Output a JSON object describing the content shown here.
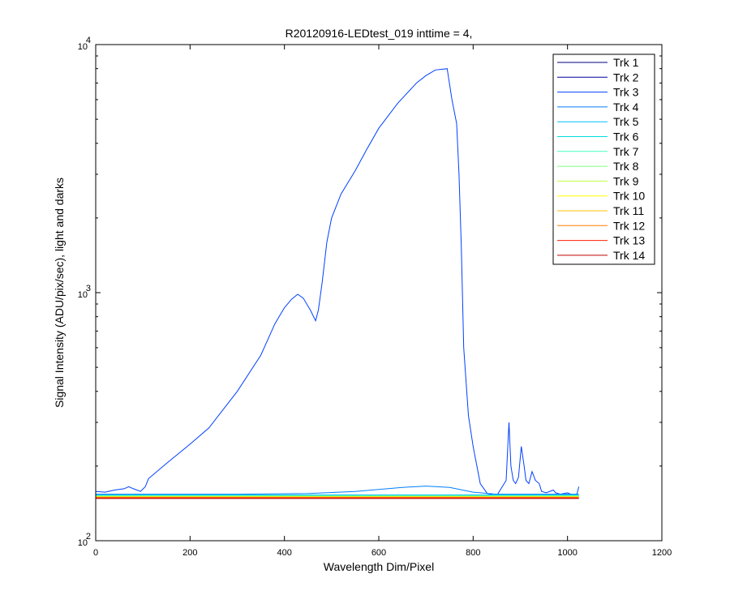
{
  "chart_data": {
    "type": "line",
    "title": "R20120916-LEDtest_019 inttime = 4,",
    "xlabel": "Wavelength Dim/Pixel",
    "ylabel": "Signal Intensity (ADU/pix/sec), light and darks",
    "xlim": [
      0,
      1200
    ],
    "ylim": [
      100,
      10000
    ],
    "yscale": "log",
    "xticks": [
      0,
      200,
      400,
      600,
      800,
      1000,
      1200
    ],
    "yticks": [
      {
        "value": 100,
        "base": "10",
        "exp": "2"
      },
      {
        "value": 1000,
        "base": "10",
        "exp": "3"
      },
      {
        "value": 10000,
        "base": "10",
        "exp": "4"
      }
    ],
    "legend_position": "top-right",
    "series": [
      {
        "name": "Trk 1",
        "color": "#00007f",
        "x": [
          0,
          1024
        ],
        "y": [
          150,
          150
        ]
      },
      {
        "name": "Trk 2",
        "color": "#00009f",
        "x": [
          0,
          1024
        ],
        "y": [
          149,
          149
        ]
      },
      {
        "name": "Trk 3",
        "color": "#0040ff",
        "x": [
          0,
          20,
          40,
          60,
          70,
          80,
          95,
          105,
          112,
          150,
          200,
          240,
          300,
          350,
          380,
          400,
          415,
          428,
          440,
          455,
          466,
          472,
          480,
          490,
          500,
          520,
          550,
          575,
          600,
          640,
          680,
          700,
          720,
          745,
          755,
          765,
          770,
          775,
          780,
          790,
          800,
          815,
          830,
          850,
          870,
          876,
          880,
          885,
          890,
          896,
          902,
          908,
          912,
          918,
          925,
          932,
          940,
          945,
          955,
          970,
          975,
          985,
          1000,
          1010,
          1020,
          1024
        ],
        "y": [
          158,
          157,
          160,
          162,
          165,
          162,
          158,
          165,
          178,
          205,
          245,
          285,
          400,
          560,
          750,
          870,
          940,
          985,
          950,
          850,
          770,
          850,
          1100,
          1600,
          2000,
          2500,
          3100,
          3800,
          4600,
          5800,
          7000,
          7500,
          7900,
          8000,
          6000,
          4800,
          3000,
          1500,
          600,
          320,
          240,
          170,
          155,
          152,
          175,
          300,
          200,
          175,
          170,
          180,
          240,
          200,
          175,
          170,
          190,
          175,
          170,
          158,
          156,
          160,
          156,
          154,
          156,
          153,
          154,
          165
        ]
      },
      {
        "name": "Trk 4",
        "color": "#007fff",
        "x": [
          0,
          300,
          450,
          550,
          650,
          700,
          750,
          800,
          850,
          1024
        ],
        "y": [
          154,
          154,
          155,
          158,
          164,
          166,
          164,
          157,
          154,
          154
        ]
      },
      {
        "name": "Trk 5",
        "color": "#00bfff",
        "x": [
          0,
          1024
        ],
        "y": [
          153,
          153
        ]
      },
      {
        "name": "Trk 6",
        "color": "#00e0e0",
        "x": [
          0,
          1024
        ],
        "y": [
          152,
          152
        ]
      },
      {
        "name": "Trk 7",
        "color": "#40ffbf",
        "x": [
          0,
          1024
        ],
        "y": [
          152,
          152
        ]
      },
      {
        "name": "Trk 8",
        "color": "#7fff7f",
        "x": [
          0,
          1024
        ],
        "y": [
          151,
          151
        ]
      },
      {
        "name": "Trk 9",
        "color": "#bfff40",
        "x": [
          0,
          1024
        ],
        "y": [
          151,
          151
        ]
      },
      {
        "name": "Trk 10",
        "color": "#ffff00",
        "x": [
          0,
          1024
        ],
        "y": [
          150,
          150
        ]
      },
      {
        "name": "Trk 11",
        "color": "#ffbf00",
        "x": [
          0,
          1024
        ],
        "y": [
          150,
          150
        ]
      },
      {
        "name": "Trk 12",
        "color": "#ff7f00",
        "x": [
          0,
          1024
        ],
        "y": [
          149,
          149
        ]
      },
      {
        "name": "Trk 13",
        "color": "#ff2000",
        "x": [
          0,
          1024
        ],
        "y": [
          149,
          149
        ]
      },
      {
        "name": "Trk 14",
        "color": "#bf0000",
        "x": [
          0,
          1024
        ],
        "y": [
          148,
          148
        ]
      }
    ]
  }
}
